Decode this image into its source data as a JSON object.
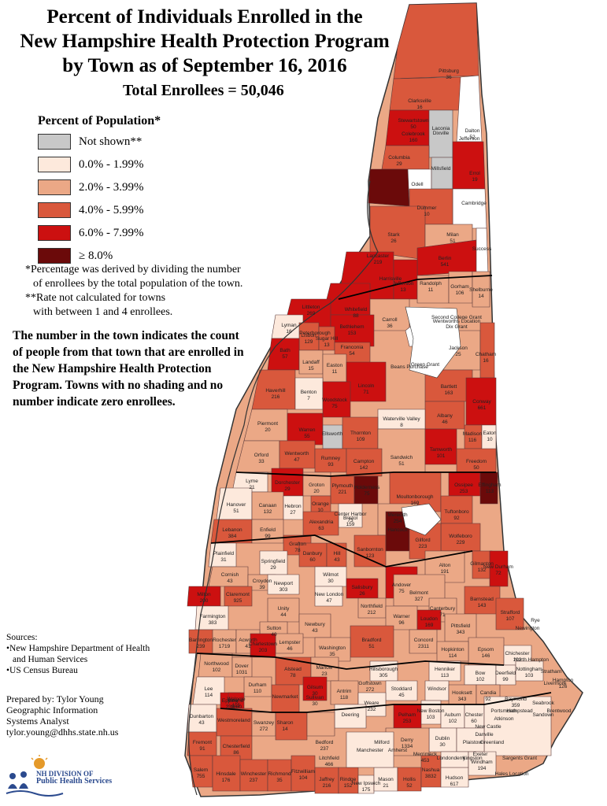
{
  "title_lines": [
    "Percent of Individuals Enrolled in the",
    "New Hampshire Health Protection Program",
    "by Town as of September 16, 2016"
  ],
  "total": "Total Enrollees = 50,046",
  "legend": {
    "title": "Percent of Population*",
    "items": [
      {
        "label": "Not shown**",
        "color": "#c8c8c8"
      },
      {
        "label": "0.0% - 1.99%",
        "color": "#fde9dc"
      },
      {
        "label": "2.0% - 3.99%",
        "color": "#eba886"
      },
      {
        "label": "4.0% - 5.99%",
        "color": "#d9583c"
      },
      {
        "label": "6.0% - 7.99%",
        "color": "#cc1010"
      },
      {
        "label": "≥ 8.0%",
        "color": "#6b0a0a"
      }
    ]
  },
  "notes": {
    "line1": "*Percentage was derived by dividing the number",
    "line2": "of enrollees by the total population of the town.",
    "line3": "**Rate not calculated for towns",
    "line4": "with between 1 and 4 enrollees."
  },
  "big_note": "The number in the town indicates the count of people from that town that are enrolled in the New Hampshire Health Protection Program.  Towns with no shading and no number indicate zero enrollees.",
  "sources": {
    "heading": "Sources:",
    "line1": "•New Hampshire Department of Health",
    "line2": "and Human Services",
    "line3": "•US Census Bureau"
  },
  "prepared": {
    "line1": "Prepared by: Tylor Young",
    "line2": "Geographic Information",
    "line3": "Systems Analyst",
    "line4": "tylor.young@dhhs.state.nh.us"
  },
  "logo": {
    "line1": "NH DIVISION OF",
    "line2": "Public Health Services"
  },
  "towns": [
    {
      "name": "Pittsburg",
      "value": "36"
    },
    {
      "name": "Clarksville",
      "value": "16"
    },
    {
      "name": "Stewartstown",
      "value": "50"
    },
    {
      "name": "Colebrook",
      "value": "160"
    },
    {
      "name": "Dixville",
      "value": ""
    },
    {
      "name": "Columbia",
      "value": "29"
    },
    {
      "name": "Errol",
      "value": "19"
    },
    {
      "name": "Odell",
      "value": ""
    },
    {
      "name": "Millsfield",
      "value": ""
    },
    {
      "name": "Cambridge",
      "value": ""
    },
    {
      "name": "Dummer",
      "value": "10"
    },
    {
      "name": "Stark",
      "value": "26"
    },
    {
      "name": "Milan",
      "value": "51"
    },
    {
      "name": "Berlin",
      "value": "541"
    },
    {
      "name": "Success",
      "value": ""
    },
    {
      "name": "Lancaster",
      "value": "219"
    },
    {
      "name": "Jefferson",
      "value": "13"
    },
    {
      "name": "Randolph",
      "value": "11"
    },
    {
      "name": "Gorham",
      "value": "106"
    },
    {
      "name": "Shelburne",
      "value": "14"
    },
    {
      "name": "Whitefield",
      "value": "88"
    },
    {
      "name": "Carroll",
      "value": "36"
    },
    {
      "name": "Littleton",
      "value": "269"
    },
    {
      "name": "Bethlehem",
      "value": "153"
    },
    {
      "name": "Lyman",
      "value": "16"
    },
    {
      "name": "Lisbon",
      "value": "129"
    },
    {
      "name": "Sugar Hill",
      "value": "13"
    },
    {
      "name": "Franconia",
      "value": "54"
    },
    {
      "name": "Bath",
      "value": "57"
    },
    {
      "name": "Landaff",
      "value": "15"
    },
    {
      "name": "Easton",
      "value": "11"
    },
    {
      "name": "Lincoln",
      "value": "71"
    },
    {
      "name": "Jackson",
      "value": "25"
    },
    {
      "name": "Chatham",
      "value": "16"
    },
    {
      "name": "Bartlett",
      "value": "163"
    },
    {
      "name": "Haverhill",
      "value": "216"
    },
    {
      "name": "Benton",
      "value": "7"
    },
    {
      "name": "Woodstock",
      "value": "75"
    },
    {
      "name": "Conway",
      "value": "661"
    },
    {
      "name": "Albany",
      "value": "46"
    },
    {
      "name": "Piermont",
      "value": "20"
    },
    {
      "name": "Warren",
      "value": "55"
    },
    {
      "name": "Ellsworth",
      "value": ""
    },
    {
      "name": "Waterville Valley",
      "value": "8"
    },
    {
      "name": "Madison",
      "value": "116"
    },
    {
      "name": "Eaton",
      "value": "10"
    },
    {
      "name": "Orford",
      "value": "33"
    },
    {
      "name": "Thornton",
      "value": "109"
    },
    {
      "name": "Sandwich",
      "value": "51"
    },
    {
      "name": "Tamworth",
      "value": "101"
    },
    {
      "name": "Freedom",
      "value": "50"
    },
    {
      "name": "Wentworth",
      "value": "47"
    },
    {
      "name": "Rumney",
      "value": "93"
    },
    {
      "name": "Campton",
      "value": "142"
    },
    {
      "name": "Ossipee",
      "value": "253"
    },
    {
      "name": "Effingham",
      "value": "113"
    },
    {
      "name": "Lyme",
      "value": "21"
    },
    {
      "name": "Dorchester",
      "value": "29"
    },
    {
      "name": "Groton",
      "value": "20"
    },
    {
      "name": "Plymouth",
      "value": "221"
    },
    {
      "name": "Holderness",
      "value": "75"
    },
    {
      "name": "Moultonborough",
      "value": "169"
    },
    {
      "name": "Tuftonboro",
      "value": "92"
    },
    {
      "name": "Hanover",
      "value": "51"
    },
    {
      "name": "Canaan",
      "value": "132"
    },
    {
      "name": "Hebron",
      "value": "27"
    },
    {
      "name": "Orange",
      "value": "10"
    },
    {
      "name": "Center Harbor",
      "value": "73"
    },
    {
      "name": "Meredith",
      "value": "254"
    },
    {
      "name": "Wolfeboro",
      "value": "229"
    },
    {
      "name": "Lebanon",
      "value": "384"
    },
    {
      "name": "Enfield",
      "value": "99"
    },
    {
      "name": "Alexandria",
      "value": "63"
    },
    {
      "name": "Bristol",
      "value": "159"
    },
    {
      "name": "Grafton",
      "value": "78"
    },
    {
      "name": "Plainfield",
      "value": "31"
    },
    {
      "name": "Danbury",
      "value": "60"
    },
    {
      "name": "Hill",
      "value": "43"
    },
    {
      "name": "Sanbornton",
      "value": "123"
    },
    {
      "name": "Gilford",
      "value": "223"
    },
    {
      "name": "Alton",
      "value": "191"
    },
    {
      "name": "Cornish",
      "value": "43"
    },
    {
      "name": "Springfield",
      "value": "29"
    },
    {
      "name": "Croydon",
      "value": "39"
    },
    {
      "name": "Wilmot",
      "value": "30"
    },
    {
      "name": "Andover",
      "value": "75"
    },
    {
      "name": "Belmont",
      "value": "327"
    },
    {
      "name": "Gilmanton",
      "value": "132"
    },
    {
      "name": "New Durham",
      "value": "72"
    },
    {
      "name": "Milton",
      "value": "200"
    },
    {
      "name": "Claremont",
      "value": "925"
    },
    {
      "name": "Newport",
      "value": "303"
    },
    {
      "name": "New London",
      "value": "47"
    },
    {
      "name": "Salisbury",
      "value": "26"
    },
    {
      "name": "Northfield",
      "value": "212"
    },
    {
      "name": "Canterbury",
      "value": "71"
    },
    {
      "name": "Barnstead",
      "value": "143"
    },
    {
      "name": "Farmington",
      "value": "383"
    },
    {
      "name": "Unity",
      "value": "44"
    },
    {
      "name": "Sutton",
      "value": "40"
    },
    {
      "name": "Newbury",
      "value": "43"
    },
    {
      "name": "Warner",
      "value": "96"
    },
    {
      "name": "Loudon",
      "value": "169"
    },
    {
      "name": "Pittsfield",
      "value": "343"
    },
    {
      "name": "Strafford",
      "value": "107"
    },
    {
      "name": "Rochester",
      "value": "1719"
    },
    {
      "name": "Acworth",
      "value": "41"
    },
    {
      "name": "Lempster",
      "value": "46"
    },
    {
      "name": "Bradford",
      "value": "51"
    },
    {
      "name": "Concord",
      "value": "2311"
    },
    {
      "name": "Epsom",
      "value": "146"
    },
    {
      "name": "Barrington",
      "value": "239"
    },
    {
      "name": "Charlestown",
      "value": "203"
    },
    {
      "name": "Washington",
      "value": "35"
    },
    {
      "name": "Hopkinton",
      "value": "114"
    },
    {
      "name": "Chichester",
      "value": "102"
    },
    {
      "name": "Northwood",
      "value": "102"
    },
    {
      "name": "Dover",
      "value": "1031"
    },
    {
      "name": "Alstead",
      "value": "78"
    },
    {
      "name": "Marlow",
      "value": "23"
    },
    {
      "name": "Hillsborough",
      "value": "305"
    },
    {
      "name": "Henniker",
      "value": "113"
    },
    {
      "name": "Bow",
      "value": "102"
    },
    {
      "name": "Deerfield",
      "value": "99"
    },
    {
      "name": "Nottingham",
      "value": "103"
    },
    {
      "name": "Lee",
      "value": "114"
    },
    {
      "name": "Durham",
      "value": "110"
    },
    {
      "name": "Walpole",
      "value": "115"
    },
    {
      "name": "Stoddard",
      "value": "45"
    },
    {
      "name": "Windsor",
      "value": ""
    },
    {
      "name": "Hooksett",
      "value": "343"
    },
    {
      "name": "Candia",
      "value": "92"
    },
    {
      "name": "Raymond",
      "value": "359"
    },
    {
      "name": "Epping",
      "value": "239"
    },
    {
      "name": "Newmarket",
      "value": ""
    },
    {
      "name": "Gilsum",
      "value": "30"
    },
    {
      "name": "Antrim",
      "value": "118"
    },
    {
      "name": "Weare",
      "value": "232"
    },
    {
      "name": "Goffstown",
      "value": "272"
    },
    {
      "name": "Dunbarton",
      "value": "43"
    },
    {
      "name": "Westmoreland",
      "value": ""
    },
    {
      "name": "Keene",
      "value": "1180"
    },
    {
      "name": "Sullivan",
      "value": "30"
    },
    {
      "name": "Deering",
      "value": ""
    },
    {
      "name": "New Boston",
      "value": "103"
    },
    {
      "name": "Auburn",
      "value": "102"
    },
    {
      "name": "Chester",
      "value": "60"
    },
    {
      "name": "Fremont",
      "value": "91"
    },
    {
      "name": "Chesterfield",
      "value": "86"
    },
    {
      "name": "Swanzey",
      "value": "272"
    },
    {
      "name": "Dublin",
      "value": "30"
    },
    {
      "name": "Derry",
      "value": "1334"
    },
    {
      "name": "Londonderry",
      "value": ""
    },
    {
      "name": "Windham",
      "value": "194"
    },
    {
      "name": "Salem",
      "value": "755"
    },
    {
      "name": "Hinsdale",
      "value": "176"
    },
    {
      "name": "Winchester",
      "value": "237"
    },
    {
      "name": "Richmond",
      "value": "35"
    },
    {
      "name": "Fitzwilliam",
      "value": "104"
    },
    {
      "name": "Jaffrey",
      "value": "216"
    },
    {
      "name": "Rindge",
      "value": "152"
    },
    {
      "name": "New Ipswich",
      "value": "175"
    },
    {
      "name": "Mason",
      "value": "21"
    },
    {
      "name": "Hollis",
      "value": "52"
    },
    {
      "name": "Nashua",
      "value": "3832"
    },
    {
      "name": "Hudson",
      "value": "617"
    },
    {
      "name": "Pelham",
      "value": "253"
    },
    {
      "name": "Manchester",
      "value": ""
    },
    {
      "name": "Milford",
      "value": ""
    },
    {
      "name": "Amherst",
      "value": ""
    },
    {
      "name": "Merrimack",
      "value": "453"
    },
    {
      "name": "Litchfield",
      "value": "466"
    },
    {
      "name": "Bedford",
      "value": "237"
    },
    {
      "name": "Sharon",
      "value": "14"
    },
    {
      "name": "Peterborough",
      "value": ""
    },
    {
      "name": "Harrisville",
      "value": ""
    },
    {
      "name": "Hancock",
      "value": ""
    },
    {
      "name": "Dalton",
      "value": "52"
    },
    {
      "name": "Jefferson",
      "value": ""
    },
    {
      "name": "Laconia",
      "value": ""
    },
    {
      "name": "Second College Grant",
      "value": ""
    },
    {
      "name": "Wentworths Location",
      "value": ""
    },
    {
      "name": "Dix Grant",
      "value": ""
    },
    {
      "name": "Green Grant",
      "value": ""
    },
    {
      "name": "Beans Purchase",
      "value": ""
    },
    {
      "name": "Sargents Grant",
      "value": ""
    },
    {
      "name": "Hales Location",
      "value": ""
    },
    {
      "name": "Livermore",
      "value": ""
    },
    {
      "name": "Hampton",
      "value": "126"
    },
    {
      "name": "Seabrook",
      "value": ""
    },
    {
      "name": "Portsmouth",
      "value": ""
    },
    {
      "name": "New Castle",
      "value": ""
    },
    {
      "name": "Greenland",
      "value": ""
    },
    {
      "name": "Exeter",
      "value": ""
    },
    {
      "name": "Kingston",
      "value": ""
    },
    {
      "name": "Danville",
      "value": ""
    },
    {
      "name": "Plaistow",
      "value": ""
    },
    {
      "name": "Atkinson",
      "value": ""
    },
    {
      "name": "Hampstead",
      "value": ""
    },
    {
      "name": "Sandown",
      "value": ""
    },
    {
      "name": "Brentwood",
      "value": ""
    },
    {
      "name": "Stratham",
      "value": ""
    },
    {
      "name": "North Hampton",
      "value": ""
    },
    {
      "name": "Rye",
      "value": ""
    },
    {
      "name": "Newington",
      "value": ""
    },
    {
      "name": "Madbury",
      "value": ""
    },
    {
      "name": "Somersworth",
      "value": "549"
    },
    {
      "name": "Rollinsford",
      "value": "69"
    }
  ]
}
